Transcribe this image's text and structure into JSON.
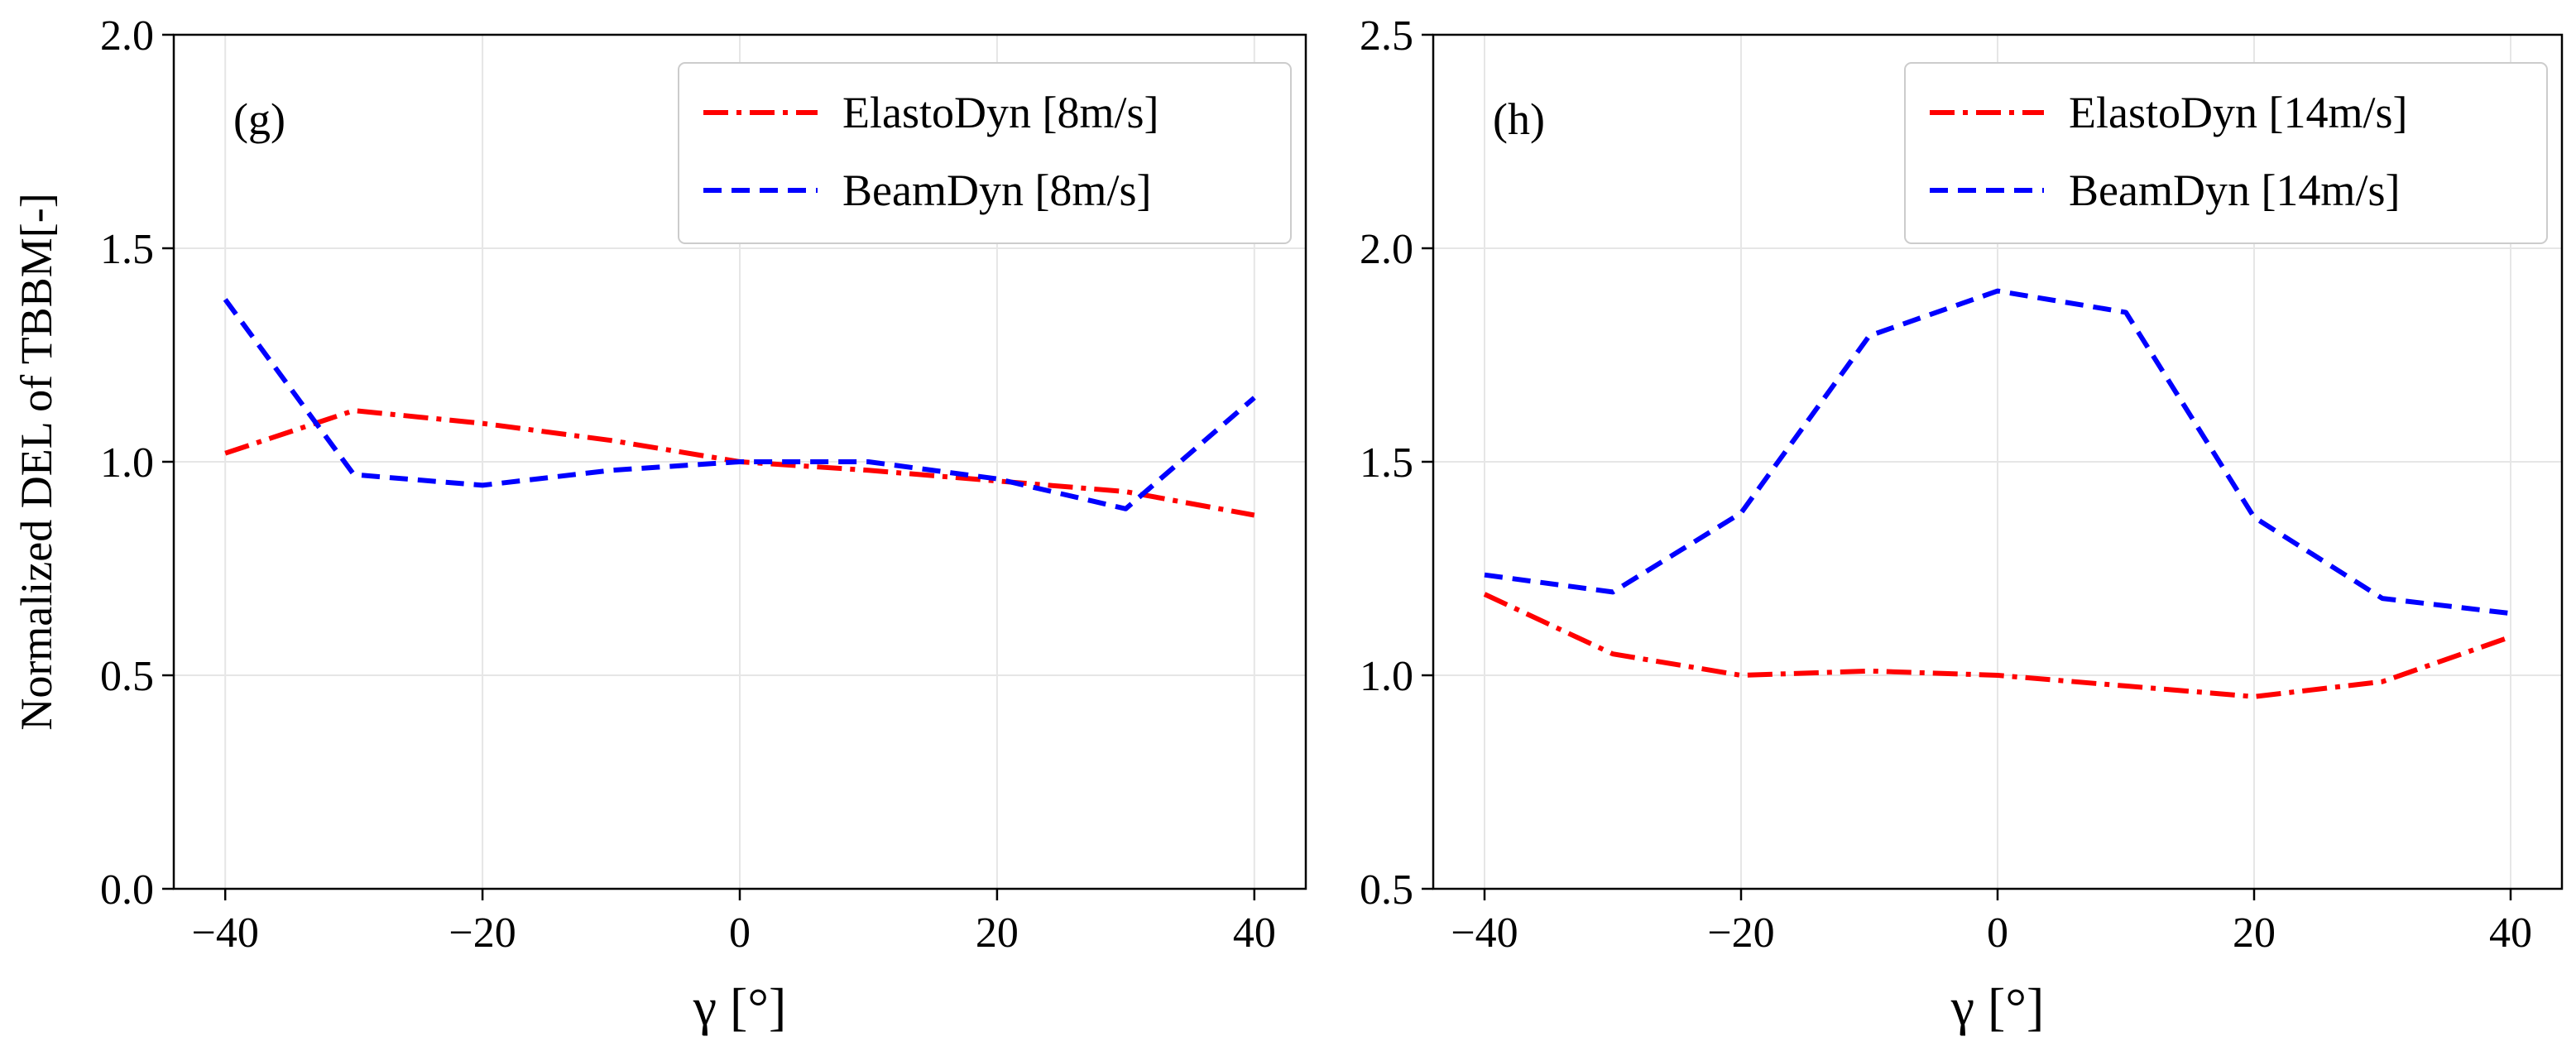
{
  "chart_data": [
    {
      "type": "line",
      "panel_label": "(g)",
      "xlabel": "γ [°]",
      "ylabel": "Normalized DEL of TBBM[-]",
      "xlim": [
        -44,
        44
      ],
      "ylim": [
        0.0,
        2.0
      ],
      "xticks": [
        -40,
        -20,
        0,
        20,
        40
      ],
      "xtick_labels": [
        "−40",
        "−20",
        "0",
        "20",
        "40"
      ],
      "yticks": [
        0.0,
        0.5,
        1.0,
        1.5,
        2.0
      ],
      "ytick_labels": [
        "0.0",
        "0.5",
        "1.0",
        "1.5",
        "2.0"
      ],
      "grid": true,
      "legend_position": "top-right",
      "x": [
        -40,
        -30,
        -20,
        -10,
        0,
        10,
        20,
        30,
        40
      ],
      "series": [
        {
          "name": "ElastoDyn [8m/s]",
          "color": "#ff0000",
          "dash": "dashdot",
          "values": [
            1.02,
            1.12,
            1.09,
            1.05,
            1.0,
            0.98,
            0.955,
            0.93,
            0.875
          ]
        },
        {
          "name": "BeamDyn [8m/s]",
          "color": "#0000ff",
          "dash": "dashed",
          "values": [
            1.38,
            0.97,
            0.945,
            0.98,
            1.0,
            1.0,
            0.96,
            0.89,
            1.15
          ]
        }
      ]
    },
    {
      "type": "line",
      "panel_label": "(h)",
      "xlabel": "γ [°]",
      "ylabel": "",
      "xlim": [
        -44,
        44
      ],
      "ylim": [
        0.5,
        2.5
      ],
      "xticks": [
        -40,
        -20,
        0,
        20,
        40
      ],
      "xtick_labels": [
        "−40",
        "−20",
        "0",
        "20",
        "40"
      ],
      "yticks": [
        0.5,
        1.0,
        1.5,
        2.0,
        2.5
      ],
      "ytick_labels": [
        "0.5",
        "1.0",
        "1.5",
        "2.0",
        "2.5"
      ],
      "grid": true,
      "legend_position": "top-right",
      "x": [
        -40,
        -30,
        -20,
        -10,
        0,
        10,
        20,
        30,
        40
      ],
      "series": [
        {
          "name": "ElastoDyn [14m/s]",
          "color": "#ff0000",
          "dash": "dashdot",
          "values": [
            1.19,
            1.05,
            1.0,
            1.01,
            1.0,
            0.975,
            0.95,
            0.985,
            1.09
          ]
        },
        {
          "name": "BeamDyn [14m/s]",
          "color": "#0000ff",
          "dash": "dashed",
          "values": [
            1.235,
            1.195,
            1.38,
            1.795,
            1.9,
            1.85,
            1.37,
            1.18,
            1.145
          ]
        }
      ]
    }
  ]
}
